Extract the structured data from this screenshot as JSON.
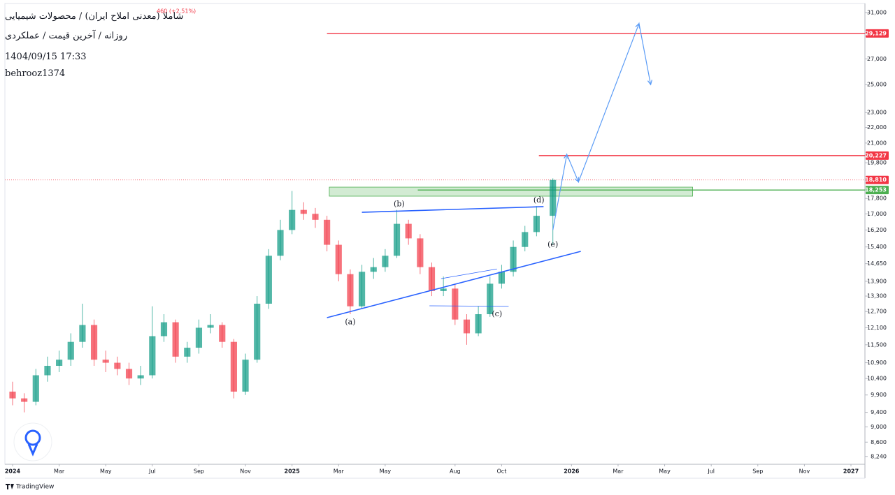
{
  "chart_data": {
    "type": "candlestick",
    "title": "شاملا (معدنی املاح ایران) / محصولات شیمیایی",
    "subtitle": "روزانه / آخرین قیمت / عملکردی",
    "date_label": "1404/09/15 17:33",
    "author": "behrooz1374",
    "change_label": "460 (+2.51%)",
    "watermark": "TradingView",
    "log_scale": true,
    "up_color": "#089981",
    "down_color": "#f23645",
    "x": [
      0,
      0.5,
      1,
      1.5,
      2,
      2.5,
      3,
      3.5,
      4,
      4.5,
      5,
      5.5,
      6,
      6.5,
      7,
      7.5,
      8,
      8.5,
      9,
      9.5,
      10,
      10.5,
      11,
      11.5,
      12,
      12.5,
      13,
      13.5,
      14,
      14.5,
      15,
      15.5,
      16,
      16.5,
      17,
      17.5,
      18,
      18.5,
      19,
      19.5,
      20,
      20.5,
      21,
      21.5,
      22,
      22.5,
      23.2
    ],
    "open": [
      10000,
      9800,
      9700,
      10500,
      10800,
      11000,
      11600,
      12200,
      11000,
      10900,
      10700,
      10400,
      10500,
      11800,
      12300,
      11100,
      11400,
      12100,
      12200,
      11600,
      10000,
      11000,
      13000,
      15000,
      16200,
      17200,
      17000,
      16700,
      15500,
      14200,
      12900,
      14300,
      14500,
      15000,
      16500,
      15800,
      14500,
      13500,
      13600,
      12400,
      11900,
      12600,
      13800,
      14300,
      15400,
      16100,
      16900
    ],
    "high": [
      10300,
      9950,
      10700,
      11100,
      11300,
      11900,
      13000,
      12400,
      11300,
      11100,
      10900,
      10800,
      12900,
      12600,
      12400,
      11600,
      12400,
      12600,
      12300,
      11700,
      11200,
      13300,
      15300,
      16700,
      18200,
      17600,
      17300,
      16900,
      15700,
      14400,
      14600,
      14900,
      15300,
      17200,
      16700,
      16000,
      14700,
      14100,
      13800,
      12600,
      12900,
      14100,
      14600,
      15700,
      16400,
      17400,
      18900
    ],
    "low": [
      9600,
      9400,
      9600,
      10300,
      10600,
      10800,
      11400,
      10800,
      10600,
      10500,
      10200,
      10200,
      10400,
      11600,
      10900,
      10900,
      11200,
      11900,
      11400,
      9800,
      9900,
      10900,
      12800,
      14800,
      16000,
      16700,
      16300,
      15200,
      13900,
      12600,
      12800,
      14000,
      14300,
      14900,
      15500,
      14200,
      13300,
      13300,
      12200,
      11500,
      11800,
      12500,
      13600,
      14100,
      15200,
      15900,
      15500
    ],
    "close": [
      9800,
      9700,
      10500,
      10800,
      11000,
      11600,
      12200,
      11000,
      10900,
      10700,
      10400,
      10500,
      11800,
      12300,
      11100,
      11400,
      12100,
      12200,
      11600,
      10000,
      11000,
      13000,
      15000,
      16200,
      17200,
      17000,
      16700,
      15500,
      14200,
      12900,
      14300,
      14500,
      15000,
      16500,
      15800,
      14500,
      13500,
      13600,
      12400,
      11900,
      12600,
      13800,
      14300,
      15400,
      16100,
      16900,
      18810
    ],
    "xlim": [
      -0.33,
      36.6
    ],
    "ylim": [
      8050,
      31850
    ],
    "xticks": [
      {
        "value": 0,
        "label": "2024"
      },
      {
        "value": 2,
        "label": "Mar"
      },
      {
        "value": 4,
        "label": "May"
      },
      {
        "value": 6,
        "label": "Jul"
      },
      {
        "value": 8,
        "label": "Sep"
      },
      {
        "value": 10,
        "label": "Nov"
      },
      {
        "value": 12,
        "label": "2025"
      },
      {
        "value": 14,
        "label": "Mar"
      },
      {
        "value": 16,
        "label": "May"
      },
      {
        "value": 19,
        "label": "Aug"
      },
      {
        "value": 21,
        "label": "Oct"
      },
      {
        "value": 24,
        "label": "2026"
      },
      {
        "value": 26,
        "label": "Mar"
      },
      {
        "value": 28,
        "label": "May"
      },
      {
        "value": 30,
        "label": "Jul"
      },
      {
        "value": 32,
        "label": "Sep"
      },
      {
        "value": 34,
        "label": "Nov"
      },
      {
        "value": 36,
        "label": "2027"
      }
    ],
    "yticks": [
      {
        "value": 31000,
        "label": "31,000"
      },
      {
        "value": 27000,
        "label": "27,000"
      },
      {
        "value": 25000,
        "label": "25,000"
      },
      {
        "value": 23000,
        "label": "23,000"
      },
      {
        "value": 22000,
        "label": "22,000"
      },
      {
        "value": 21000,
        "label": "21,000"
      },
      {
        "value": 19800,
        "label": "19,800"
      },
      {
        "value": 17800,
        "label": "17,800"
      },
      {
        "value": 17000,
        "label": "17,000"
      },
      {
        "value": 16200,
        "label": "16,200"
      },
      {
        "value": 15400,
        "label": "15,400"
      },
      {
        "value": 14650,
        "label": "14,650"
      },
      {
        "value": 13900,
        "label": "13,900"
      },
      {
        "value": 13300,
        "label": "13,300"
      },
      {
        "value": 12700,
        "label": "12,700"
      },
      {
        "value": 12100,
        "label": "12,100"
      },
      {
        "value": 11500,
        "label": "11,500"
      },
      {
        "value": 10900,
        "label": "10,900"
      },
      {
        "value": 10400,
        "label": "10,400"
      },
      {
        "value": 9900,
        "label": "9,900"
      },
      {
        "value": 9400,
        "label": "9,400"
      },
      {
        "value": 9000,
        "label": "9,000"
      },
      {
        "value": 8600,
        "label": "8,600"
      },
      {
        "value": 8240,
        "label": "8,240"
      }
    ],
    "levels": [
      {
        "value": 29129,
        "label": "29,129",
        "color": "#f23645",
        "from": 13.5
      },
      {
        "value": 20227,
        "label": "20,227",
        "color": "#f23645",
        "from": 22.6
      },
      {
        "value": 18810,
        "label": "18,810",
        "color": "#f23645",
        "dotted": true
      },
      {
        "value": 18253,
        "label": "18,253",
        "color": "#4caf50",
        "from": 17.4
      }
    ],
    "zone": {
      "x": [
        13.6,
        29.2
      ],
      "y": [
        17920,
        18410
      ],
      "color": "#4caf50"
    },
    "trendlines": [
      {
        "x": [
          13.5,
          24.4
        ],
        "y": [
          12470,
          15200
        ],
        "color": "#2962ff",
        "width": 1.6
      },
      {
        "x": [
          15.0,
          22.8
        ],
        "y": [
          17080,
          17370
        ],
        "color": "#2962ff",
        "width": 1.6
      },
      {
        "x": [
          18.4,
          20.8
        ],
        "y": [
          14010,
          14420
        ],
        "color": "#2962ff",
        "width": 0.8
      },
      {
        "x": [
          17.9,
          21.3
        ],
        "y": [
          12920,
          12900
        ],
        "color": "#2962ff",
        "width": 0.8
      }
    ],
    "annotations": [
      {
        "text": "(a)",
        "x": 14.5,
        "y": 12300
      },
      {
        "text": "(b)",
        "x": 16.6,
        "y": 17500
      },
      {
        "text": "(c)",
        "x": 20.8,
        "y": 12600
      },
      {
        "text": "(d)",
        "x": 22.6,
        "y": 17700
      },
      {
        "text": "(e)",
        "x": 23.2,
        "y": 15500
      }
    ],
    "projection": {
      "x": [
        23.2,
        23.8,
        24.3,
        26.9,
        27.4
      ],
      "y": [
        16200,
        20300,
        18700,
        30000,
        25000
      ],
      "color": "#5b9cf6"
    }
  }
}
